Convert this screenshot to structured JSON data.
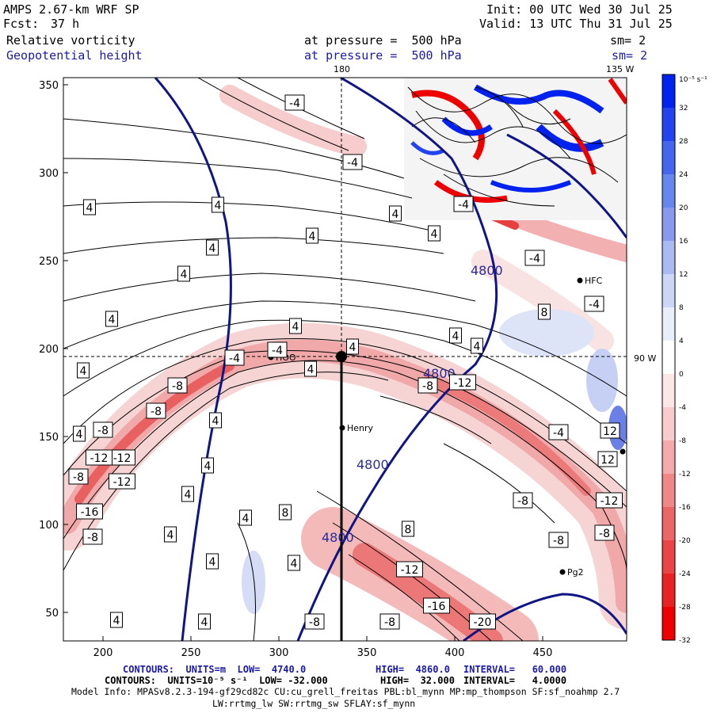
{
  "header": {
    "model": "AMPS 2.67-km WRF SP",
    "init": "Init: 00 UTC Wed 30 Jul 25",
    "fcst_label": "Fcst:",
    "fcst_value": "37 h",
    "valid": "Valid: 13 UTC Thu 31 Jul 25",
    "field1": "Relative vorticity",
    "field1_level": "at pressure =  500 hPa",
    "field1_sm": "sm= 2",
    "field2": "Geopotential height",
    "field2_level": "at pressure =  500 hPa",
    "field2_sm": "sm= 2"
  },
  "map": {
    "lon_labels": [
      "180",
      "135 W",
      "90 W"
    ],
    "y_ticks": [
      "350",
      "300",
      "250",
      "200",
      "150",
      "100",
      "50"
    ],
    "x_ticks": [
      "200",
      "250",
      "300",
      "350",
      "400",
      "450"
    ],
    "stations": [
      {
        "name": "Henry"
      },
      {
        "name": "Pg2"
      },
      {
        "name": "HFC"
      },
      {
        "name": "HOO"
      }
    ],
    "height_labels": [
      "4800",
      "4800",
      "4800",
      "4800"
    ],
    "vort_labels": [
      "4",
      "4",
      "4",
      "4",
      "4",
      "4",
      "4",
      "4",
      "4",
      "4",
      "4",
      "4",
      "4",
      "4",
      "4",
      "4",
      "4",
      "4",
      "4",
      "4",
      "4",
      "4",
      "4",
      "4",
      "-4",
      "-4",
      "-4",
      "-4",
      "-4",
      "-4",
      "-4",
      "-4",
      "-8",
      "-8",
      "-8",
      "-8",
      "-8",
      "-8",
      "-8",
      "-8",
      "-8",
      "-8",
      "-8",
      "-12",
      "-12",
      "-12",
      "-12",
      "-12",
      "-12",
      "-16",
      "-16",
      "-20",
      "8",
      "8",
      "8",
      "12",
      "12"
    ]
  },
  "colorbar": {
    "unit": "10⁻⁵ s⁻¹",
    "labels": [
      "32",
      "28",
      "24",
      "20",
      "16",
      "12",
      "8",
      "4",
      "0",
      "-4",
      "-8",
      "-12",
      "-16",
      "-20",
      "-24",
      "-28",
      "-32"
    ],
    "colors": [
      "#0022ee",
      "#2244ee",
      "#4466ee",
      "#6688ee",
      "#8899ee",
      "#aabbf2",
      "#ccd6f6",
      "#e8eefa",
      "#ffffff",
      "#fce6e6",
      "#f8cccc",
      "#f4aaaa",
      "#f08888",
      "#ec6666",
      "#ea4444",
      "#e82222",
      "#ee0000"
    ]
  },
  "footer": {
    "line1_a": "CONTOURS:  UNITS=m  LOW=  4740.0",
    "line1_b": "HIGH=  4860.0",
    "line1_c": "INTERVAL=   60.000",
    "line2_a": "CONTOURS:  UNITS=10⁻⁵ s⁻¹  LOW= -32.000",
    "line2_b": "HIGH=  32.000",
    "line2_c": "INTERVAL=   4.0000",
    "line3": "Model Info: MPASv8.2.3-194-gf29cd82c CU:cu_grell_freitas PBL:bl_mynn MP:mp_thompson SF:sf_noahmp 2.7",
    "line4": "LW:rrtmg_lw SW:rrtmg_sw SFLAY:sf_mynn"
  }
}
